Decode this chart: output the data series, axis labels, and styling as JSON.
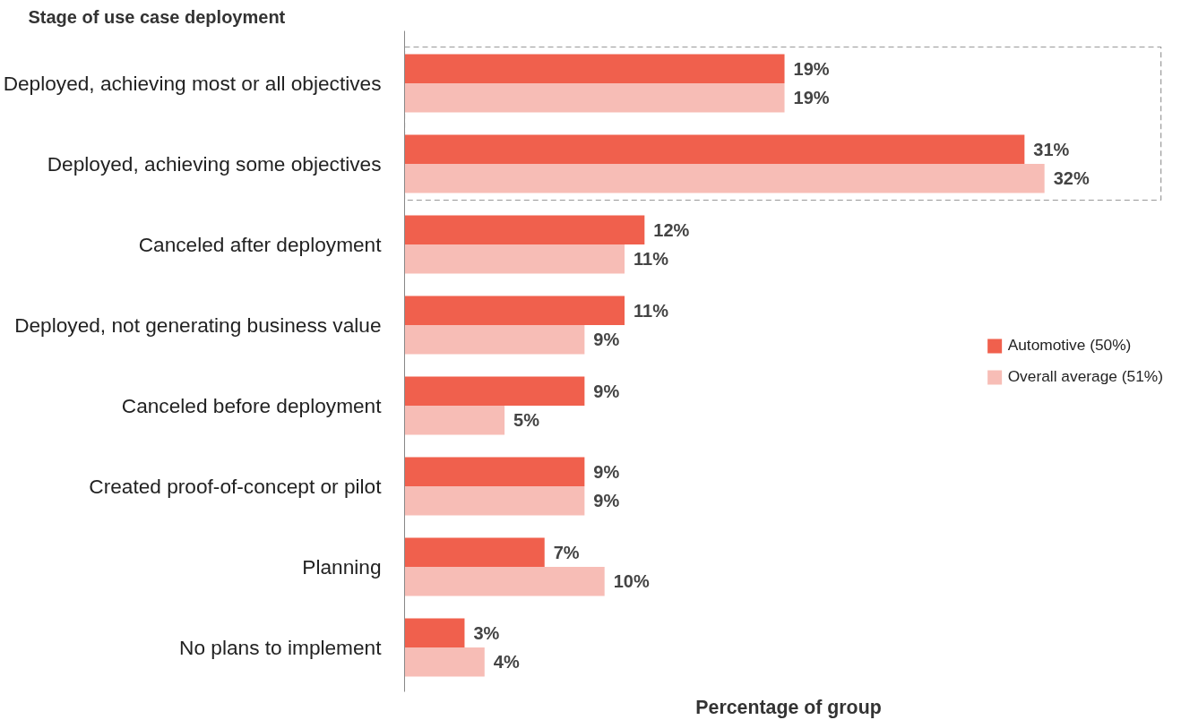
{
  "chart_data": {
    "type": "bar",
    "orientation": "horizontal",
    "ylabel": "Stage of use case deployment",
    "xlabel": "Percentage of group",
    "categories": [
      "Deployed, achieving most or all objectives",
      "Deployed, achieving some objectives",
      "Canceled after deployment",
      "Deployed, not generating business value",
      "Canceled before deployment",
      "Created proof-of-concept or pilot",
      "Planning",
      "No plans to implement"
    ],
    "series": [
      {
        "name": "Automotive (50%)",
        "color": "#f0604d",
        "values": [
          19,
          31,
          12,
          11,
          9,
          9,
          7,
          3
        ],
        "value_labels": [
          "19%",
          "31%",
          "12%",
          "11%",
          "9%",
          "9%",
          "7%",
          "3%"
        ]
      },
      {
        "name": "Overall average (51%)",
        "color": "#f7bdb6",
        "values": [
          19,
          32,
          11,
          9,
          5,
          9,
          10,
          4
        ],
        "value_labels": [
          "19%",
          "32%",
          "11%",
          "9%",
          "5%",
          "9%",
          "10%",
          "4%"
        ]
      }
    ],
    "legend": "right",
    "tick_labels": "y"
  }
}
